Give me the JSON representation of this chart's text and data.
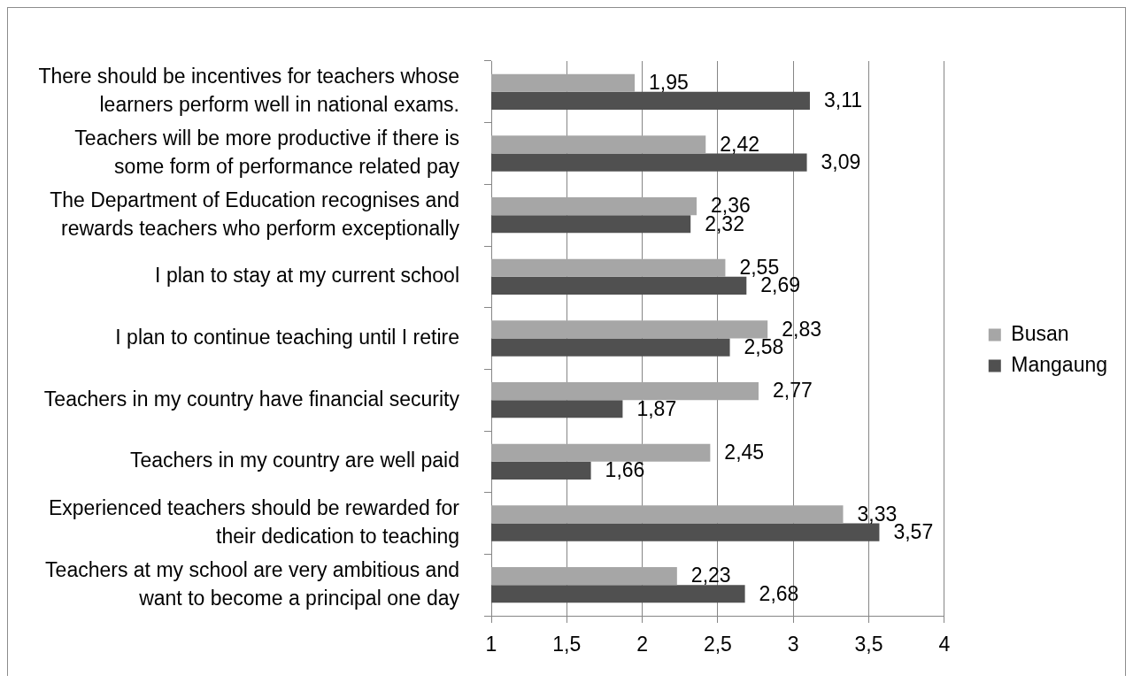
{
  "chart_data": {
    "type": "bar",
    "orientation": "horizontal",
    "categories": [
      "There should be incentives for teachers whose learners perform well in national exams.",
      "Teachers will be more productive if there is some form of performance related pay",
      "The Department of Education recognises and rewards teachers who perform exceptionally",
      "I plan to stay at my current school",
      "I plan to continue teaching until I retire",
      "Teachers in my country have financial security",
      "Teachers in my country are well paid",
      "Experienced teachers should be rewarded for their dedication to teaching",
      "Teachers at my school are very ambitious and want to become a principal one day"
    ],
    "series": [
      {
        "name": "Busan",
        "color": "#a6a6a6",
        "values": [
          1.95,
          2.42,
          2.36,
          2.55,
          2.83,
          2.77,
          2.45,
          3.33,
          2.23
        ],
        "value_labels": [
          "1,95",
          "2,42",
          "2,36",
          "2,55",
          "2,83",
          "2,77",
          "2,45",
          "3,33",
          "2,23"
        ]
      },
      {
        "name": "Mangaung",
        "color": "#505050",
        "values": [
          3.11,
          3.09,
          2.32,
          2.69,
          2.58,
          1.87,
          1.66,
          3.57,
          2.68
        ],
        "value_labels": [
          "3,11",
          "3,09",
          "2,32",
          "2,69",
          "2,58",
          "1,87",
          "1,66",
          "3,57",
          "2,68"
        ]
      }
    ],
    "xlim": [
      1,
      4
    ],
    "xticks": [
      1,
      {
        "value": 1.5,
        "label": "1,5"
      },
      2,
      {
        "value": 2.5,
        "label": "2,5"
      },
      3,
      {
        "value": 3.5,
        "label": "3,5"
      },
      4
    ],
    "grid": "x",
    "legend": "right"
  }
}
